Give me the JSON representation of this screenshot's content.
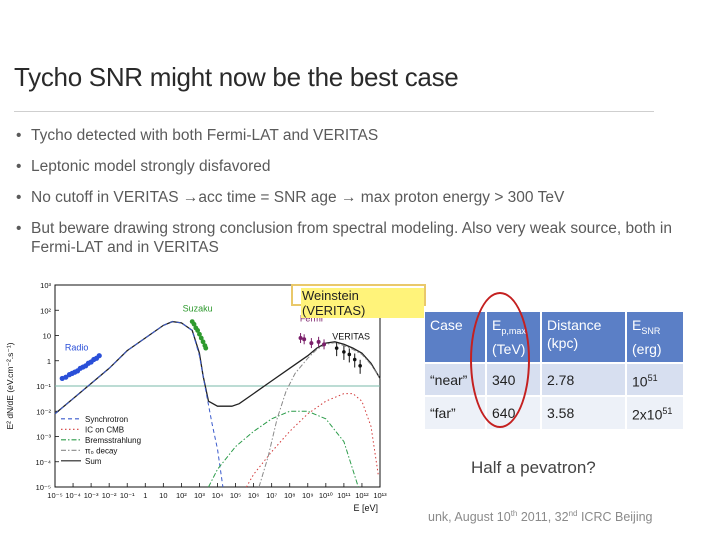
{
  "slide": {
    "title": "Tycho SNR might now be the best case",
    "bullets": [
      "Tycho detected with both Fermi-LAT and VERITAS",
      "Leptonic model strongly disfavored",
      "No cutoff in VERITAS →acc time = SNR age → max proton energy > 300 TeV",
      "But beware drawing strong conclusion from spectral modeling. Also very weak source, both in Fermi-LAT and in VERITAS"
    ],
    "credit": "Weinstein (VERITAS)",
    "question": "Half a pevatron?",
    "footer": {
      "pre": "unk, August 10",
      "sup1": "th",
      "mid": " 2011, 32",
      "sup2": "nd",
      "post": " ICRC Beijing"
    }
  },
  "table": {
    "headers": [
      {
        "main": "Case",
        "sub": "",
        "line2": ""
      },
      {
        "main": "E",
        "sub": "p,max",
        "line2": "(TeV)"
      },
      {
        "main": "Distance",
        "sub": "",
        "line2": "(kpc)"
      },
      {
        "main": "E",
        "sub": "SNR",
        "line2": "(erg)"
      }
    ],
    "rows": [
      {
        "case": "“near”",
        "ep": "340",
        "dist": "2.78",
        "e_base": "10",
        "e_exp": "51"
      },
      {
        "case": "“far”",
        "ep": "640",
        "dist": "3.58",
        "e_base": "2x10",
        "e_exp": "51"
      }
    ]
  },
  "chart_data": {
    "type": "line",
    "xlabel": "E [eV]",
    "ylabel": "E² dN/dE (eV.cm⁻².s⁻¹)",
    "x_scale": "log",
    "y_scale": "log",
    "xlim": [
      1e-05,
      10000000000000.0
    ],
    "ylim": [
      1e-05,
      1000.0
    ],
    "x_ticks": [
      "10⁻⁵",
      "10⁻⁴",
      "10⁻³",
      "10⁻²",
      "10⁻¹",
      "1",
      "10",
      "10²",
      "10³",
      "10⁴",
      "10⁵",
      "10⁶",
      "10⁷",
      "10⁸",
      "10⁹",
      "10¹⁰",
      "10¹¹",
      "10¹²",
      "10¹³"
    ],
    "y_ticks": [
      "10⁻⁵",
      "10⁻⁴",
      "10⁻³",
      "10⁻²",
      "10⁻¹",
      "1",
      "10",
      "10²",
      "10³"
    ],
    "annotations": [
      "Suzaku",
      "Fermi",
      "Radio",
      "VERITAS"
    ],
    "legend": {
      "placement": "bottom-left",
      "entries": [
        "Synchrotron",
        "IC on CMB",
        "Bremsstrahlung",
        "π₀ decay",
        "Sum"
      ]
    },
    "colors": {
      "radio": "#2a4fd8",
      "suzaku": "#2e9a2e",
      "fermi": "#7a1f6a",
      "veritas": "#111111",
      "synchrotron": "#3a5acc",
      "ic": "#d23a3a",
      "brems": "#2c9c4a",
      "pi0": "#8a8a8a",
      "sum": "#222222"
    },
    "series": [
      {
        "name": "Sum",
        "style": "solid",
        "points": [
          [
            -5,
            -2.1
          ],
          [
            -4,
            -1.5
          ],
          [
            -3,
            -0.9
          ],
          [
            -2,
            -0.3
          ],
          [
            -1,
            0.4
          ],
          [
            0,
            0.9
          ],
          [
            1,
            1.4
          ],
          [
            1.5,
            1.55
          ],
          [
            2,
            1.5
          ],
          [
            2.6,
            1.2
          ],
          [
            3,
            0.3
          ],
          [
            3.2,
            -0.6
          ],
          [
            3.5,
            -1.6
          ],
          [
            4,
            -1.8
          ],
          [
            4.8,
            -1.8
          ],
          [
            5.2,
            -1.7
          ],
          [
            6,
            -1.3
          ],
          [
            7,
            -0.8
          ],
          [
            8,
            -0.3
          ],
          [
            9,
            0.2
          ],
          [
            9.5,
            0.5
          ],
          [
            10,
            0.7
          ],
          [
            10.5,
            0.75
          ],
          [
            11,
            0.65
          ],
          [
            11.5,
            0.5
          ],
          [
            12,
            0.3
          ],
          [
            12.5,
            -0.1
          ],
          [
            13,
            -0.7
          ]
        ]
      },
      {
        "name": "Synchrotron",
        "style": "dash",
        "points": [
          [
            -5,
            -2.1
          ],
          [
            -4,
            -1.5
          ],
          [
            -3,
            -0.9
          ],
          [
            -2,
            -0.3
          ],
          [
            -1,
            0.4
          ],
          [
            0,
            0.9
          ],
          [
            1,
            1.4
          ],
          [
            1.5,
            1.55
          ],
          [
            2,
            1.5
          ],
          [
            2.6,
            1.2
          ],
          [
            3,
            0.2
          ],
          [
            3.3,
            -1
          ],
          [
            3.7,
            -2.5
          ],
          [
            4,
            -3.5
          ],
          [
            4.3,
            -5
          ]
        ]
      },
      {
        "name": "IC on CMB",
        "style": "dot",
        "points": [
          [
            5.6,
            -5
          ],
          [
            6,
            -4.5
          ],
          [
            7,
            -3.6
          ],
          [
            8,
            -2.8
          ],
          [
            9,
            -2.1
          ],
          [
            10,
            -1.6
          ],
          [
            11,
            -1.3
          ],
          [
            11.5,
            -1.3
          ],
          [
            12,
            -1.6
          ],
          [
            12.5,
            -2.6
          ],
          [
            12.9,
            -4.5
          ]
        ]
      },
      {
        "name": "Bremsstrahlung",
        "style": "dashdot",
        "points": [
          [
            3.5,
            -5
          ],
          [
            4,
            -4.3
          ],
          [
            5,
            -3.4
          ],
          [
            6,
            -2.8
          ],
          [
            7,
            -2.3
          ],
          [
            8,
            -2
          ],
          [
            9,
            -2
          ],
          [
            10,
            -2.3
          ],
          [
            11,
            -3.2
          ],
          [
            11.8,
            -5
          ]
        ]
      },
      {
        "name": "π₀ decay",
        "style": "dashdot",
        "points": [
          [
            6.3,
            -5
          ],
          [
            6.8,
            -3.8
          ],
          [
            7.3,
            -2.3
          ],
          [
            7.8,
            -1.2
          ],
          [
            8.3,
            -0.5
          ],
          [
            9,
            0.1
          ],
          [
            9.5,
            0.45
          ],
          [
            10,
            0.65
          ],
          [
            10.5,
            0.72
          ],
          [
            11,
            0.6
          ],
          [
            11.5,
            0.45
          ],
          [
            12,
            0.25
          ],
          [
            12.5,
            -0.15
          ],
          [
            13,
            -0.7
          ]
        ]
      }
    ],
    "markers": {
      "radio": [
        [
          -4.6,
          -0.7
        ],
        [
          -4.4,
          -0.65
        ],
        [
          -4.2,
          -0.55
        ],
        [
          -4.05,
          -0.5
        ],
        [
          -3.9,
          -0.45
        ],
        [
          -3.75,
          -0.4
        ],
        [
          -3.6,
          -0.3
        ],
        [
          -3.45,
          -0.25
        ],
        [
          -3.3,
          -0.2
        ],
        [
          -3.15,
          -0.1
        ],
        [
          -3,
          -0.05
        ],
        [
          -2.85,
          0.05
        ],
        [
          -2.7,
          0.1
        ],
        [
          -2.55,
          0.2
        ]
      ],
      "suzaku": [
        [
          2.6,
          1.55
        ],
        [
          2.7,
          1.45
        ],
        [
          2.8,
          1.3
        ],
        [
          2.9,
          1.2
        ],
        [
          3,
          1.05
        ],
        [
          3.1,
          0.9
        ],
        [
          3.2,
          0.75
        ],
        [
          3.3,
          0.6
        ],
        [
          3.35,
          0.5
        ]
      ],
      "fermi": [
        [
          8.6,
          0.9
        ],
        [
          8.8,
          0.85
        ],
        [
          9.2,
          0.7
        ],
        [
          9.6,
          0.75
        ],
        [
          9.9,
          0.65
        ]
      ],
      "veritas": [
        [
          10.6,
          0.5
        ],
        [
          11,
          0.35
        ],
        [
          11.3,
          0.25
        ],
        [
          11.6,
          0.05
        ],
        [
          11.9,
          -0.2
        ]
      ]
    }
  }
}
